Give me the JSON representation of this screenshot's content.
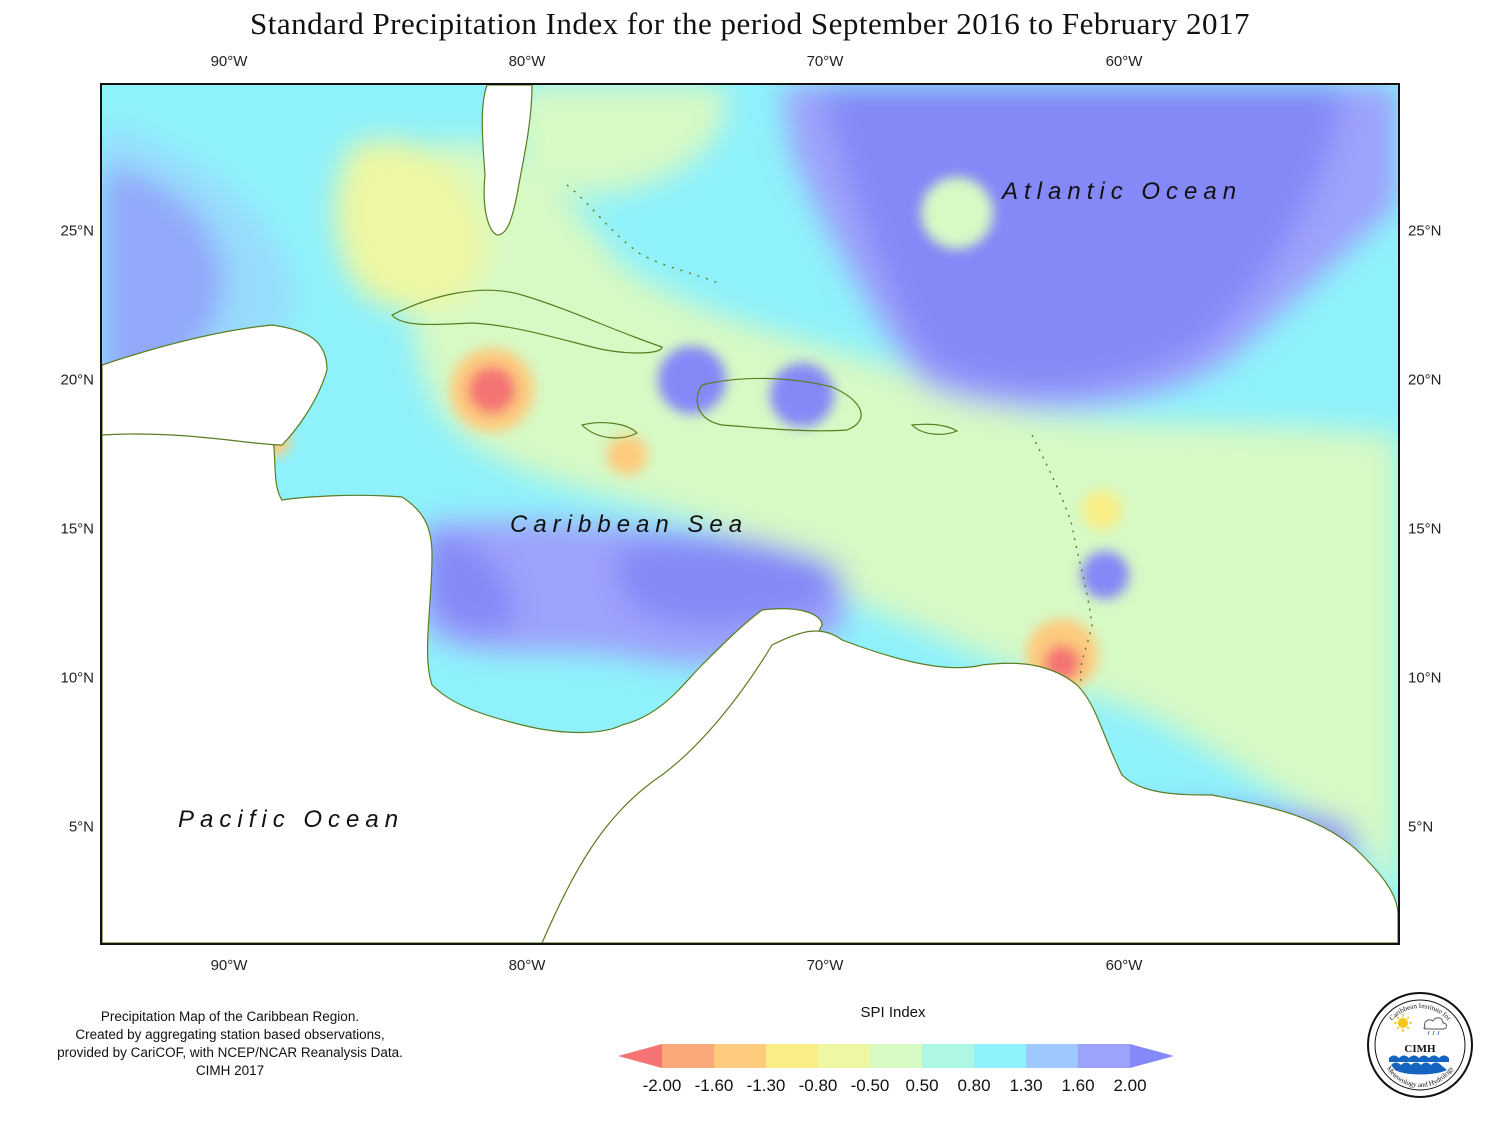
{
  "title": "Standard Precipitation Index for the period September 2016 to February 2017",
  "lon_ticks": [
    "90°W",
    "80°W",
    "70°W",
    "60°W"
  ],
  "lat_ticks": [
    "25°N",
    "20°N",
    "15°N",
    "10°N",
    "5°N"
  ],
  "labels": {
    "atlantic": "Atlantic Ocean",
    "caribbean": "Caribbean Sea",
    "pacific": "Pacific Ocean"
  },
  "caption": [
    "Precipitation Map of the Caribbean Region.",
    "Created by aggregating station based observations,",
    "provided by CariCOF, with NCEP/NCAR Reanalysis Data.",
    "CIMH 2017"
  ],
  "legend": {
    "title": "SPI Index",
    "values": [
      "-2.00",
      "-1.60",
      "-1.30",
      "-0.80",
      "-0.50",
      "0.50",
      "0.80",
      "1.30",
      "1.60",
      "2.00"
    ],
    "colors": [
      "#f47373",
      "#f9a878",
      "#fdcb7e",
      "#f9ee86",
      "#eef7a2",
      "#d7f9c4",
      "#aef7e4",
      "#8ff1fb",
      "#9fc8fd",
      "#9da2fb",
      "#8588f7"
    ]
  },
  "logo": {
    "text_top": "Caribbean Institute for",
    "text_bottom": "Meteorology and Hydrology",
    "acronym": "CIMH"
  }
}
